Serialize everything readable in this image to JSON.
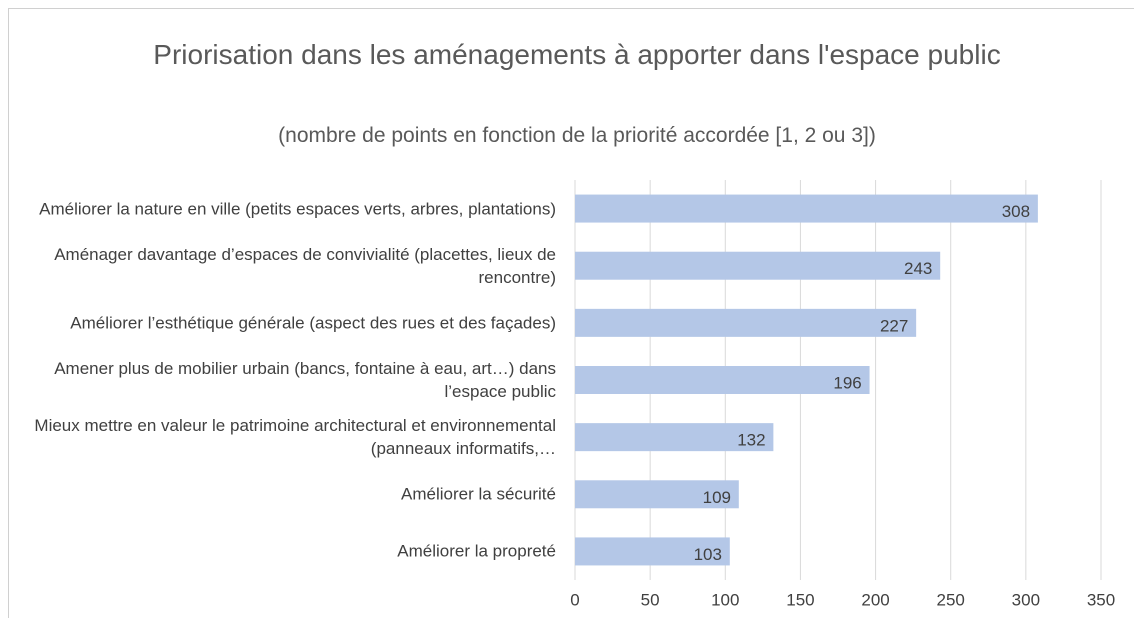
{
  "chart_data": {
    "type": "bar",
    "orientation": "horizontal",
    "title": "Priorisation dans les aménagements à apporter dans l'espace public",
    "subtitle": "(nombre de points en fonction de la priorité accordée [1, 2 ou 3])",
    "categories": [
      "Améliorer la nature en ville (petits espaces verts, arbres, plantations)",
      "Aménager davantage d’espaces de convivialité (placettes, lieux de rencontre)",
      "Améliorer l’esthétique générale (aspect des rues et des façades)",
      "Amener plus de mobilier urbain (bancs, fontaine à eau, art…) dans l’espace public",
      "Mieux mettre en valeur le patrimoine architectural et environnemental (panneaux informatifs,…",
      "Améliorer la sécurité",
      "Améliorer la propreté"
    ],
    "values": [
      308,
      243,
      227,
      196,
      132,
      109,
      103
    ],
    "color": "#b4c7e7",
    "xlim": [
      0,
      350
    ],
    "xticks": [
      0,
      50,
      100,
      150,
      200,
      250,
      300,
      350
    ],
    "grid": true
  }
}
